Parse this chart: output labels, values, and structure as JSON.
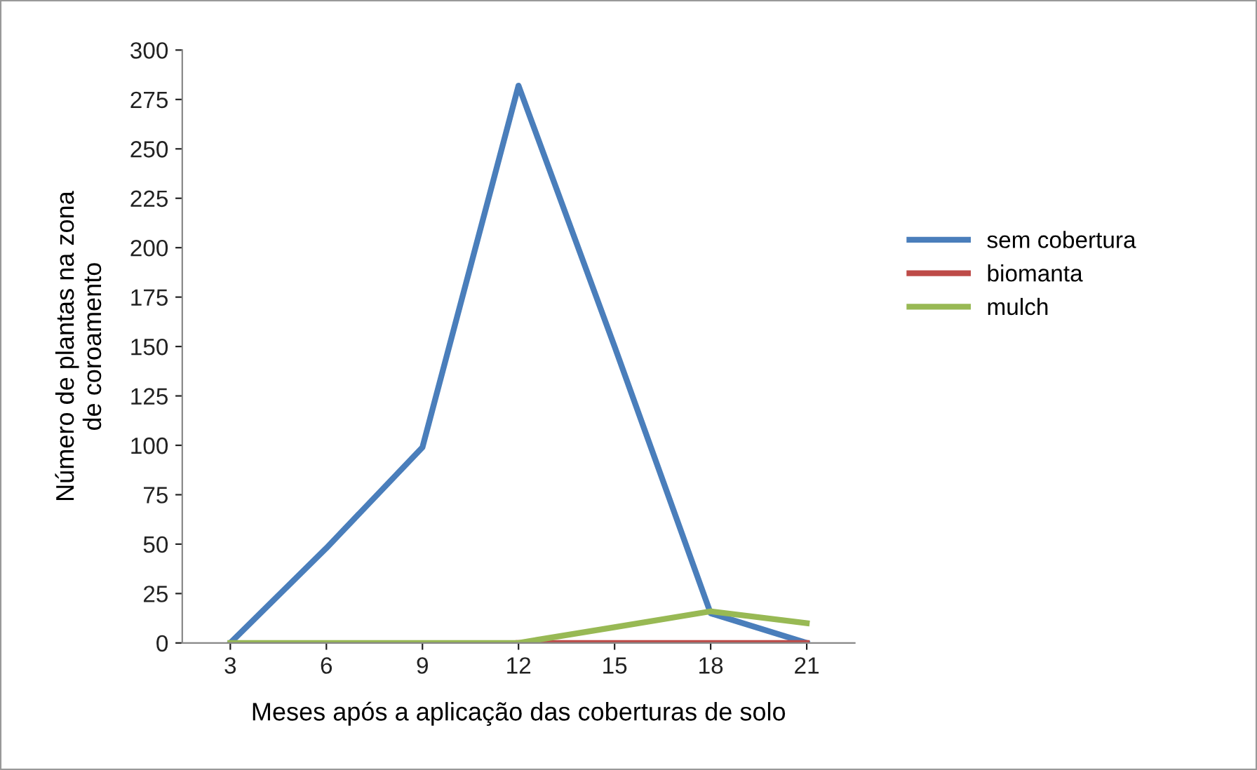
{
  "chart_data": {
    "type": "line",
    "xlabel": "Meses após a aplicação das coberturas de solo",
    "ylabel": "Número de plantas na zona\nde coroamento",
    "categories": [
      "3",
      "6",
      "9",
      "12",
      "15",
      "18",
      "21"
    ],
    "series": [
      {
        "name": "sem cobertura",
        "color": "#4a7ebb",
        "values": [
          0,
          48,
          99,
          282,
          150,
          15,
          0
        ]
      },
      {
        "name": "biomanta",
        "color": "#be4b48",
        "values": [
          null,
          null,
          null,
          0,
          0,
          0,
          0
        ]
      },
      {
        "name": "mulch",
        "color": "#98b954",
        "values": [
          0,
          0,
          0,
          0,
          8,
          16,
          10
        ]
      }
    ],
    "ylim": [
      0,
      300
    ],
    "yticks": [
      0,
      25,
      50,
      75,
      100,
      125,
      150,
      175,
      200,
      225,
      250,
      275,
      300
    ],
    "grid": false,
    "legend": "right",
    "marker": "none",
    "line_style": "solid"
  }
}
